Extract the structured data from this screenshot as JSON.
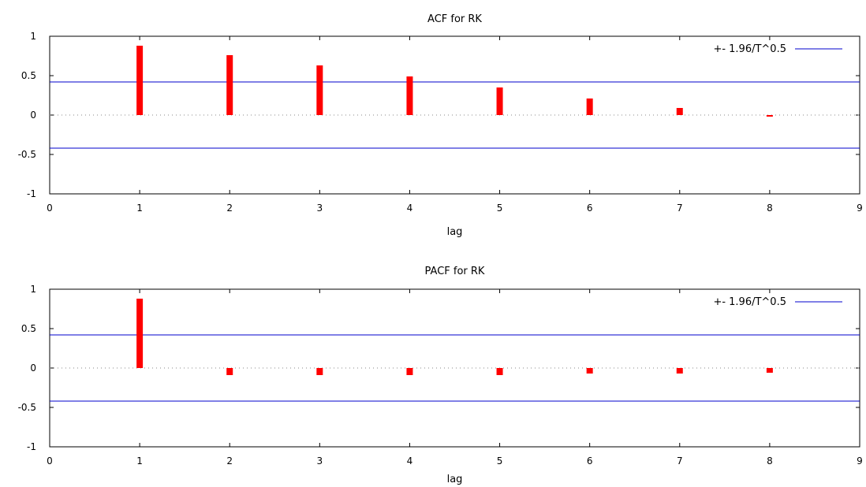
{
  "chart_data": [
    {
      "type": "bar",
      "title": "ACF for RK",
      "xlabel": "lag",
      "ylabel": "",
      "xlim": [
        0,
        9
      ],
      "ylim": [
        -1,
        1
      ],
      "xticks": [
        "0",
        "1",
        "2",
        "3",
        "4",
        "5",
        "6",
        "7",
        "8",
        "9"
      ],
      "yticks": [
        "1",
        "0.5",
        "0",
        "-0.5",
        "-1"
      ],
      "lags": [
        1,
        2,
        3,
        4,
        5,
        6,
        7,
        8
      ],
      "values": [
        0.88,
        0.76,
        0.63,
        0.49,
        0.35,
        0.21,
        0.09,
        -0.02
      ],
      "bar_color": "#ff0000",
      "bound": 0.42,
      "bound_color": "#0000cc",
      "zero_line": "dotted",
      "legend": {
        "label": "+- 1.96/T^0.5",
        "position": "top-right"
      }
    },
    {
      "type": "bar",
      "title": "PACF for RK",
      "xlabel": "lag",
      "ylabel": "",
      "xlim": [
        0,
        9
      ],
      "ylim": [
        -1,
        1
      ],
      "xticks": [
        "0",
        "1",
        "2",
        "3",
        "4",
        "5",
        "6",
        "7",
        "8",
        "9"
      ],
      "yticks": [
        "1",
        "0.5",
        "0",
        "-0.5",
        "-1"
      ],
      "lags": [
        1,
        2,
        3,
        4,
        5,
        6,
        7,
        8
      ],
      "values": [
        0.88,
        -0.09,
        -0.09,
        -0.09,
        -0.09,
        -0.07,
        -0.07,
        -0.06
      ],
      "bar_color": "#ff0000",
      "bound": 0.42,
      "bound_color": "#0000cc",
      "zero_line": "dotted",
      "legend": {
        "label": "+- 1.96/T^0.5",
        "position": "top-right"
      }
    }
  ]
}
